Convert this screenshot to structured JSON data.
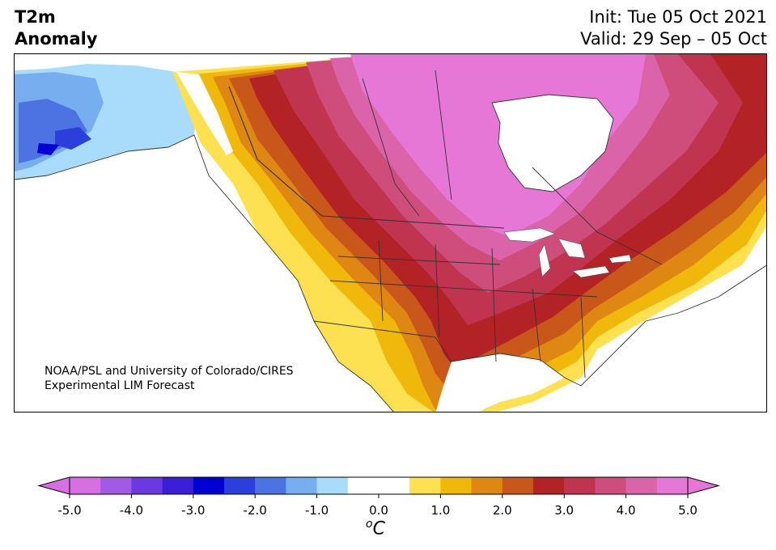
{
  "header": {
    "title_line1": "T2m",
    "title_line2": "Anomaly",
    "init": "Init: Tue 05 Oct 2021",
    "valid": "Valid: 29 Sep – 05 Oct"
  },
  "credit": {
    "line1": "NOAA/PSL and University of Colorado/CIRES",
    "line2": "Experimental LIM Forecast"
  },
  "colorbar": {
    "unit_base": "C",
    "unit_sup": "o",
    "ticks": [
      "-5.0",
      "-4.0",
      "-3.0",
      "-2.0",
      "-1.0",
      "0.0",
      "1.0",
      "2.0",
      "3.0",
      "4.0",
      "5.0"
    ],
    "bins": [
      {
        "color": "#d76fe3",
        "range": [
          -5.0,
          -4.5
        ]
      },
      {
        "color": "#a05ae6",
        "range": [
          -4.5,
          -4.0
        ]
      },
      {
        "color": "#6a3ae0",
        "range": [
          -4.0,
          -3.5
        ]
      },
      {
        "color": "#3a1fd6",
        "range": [
          -3.5,
          -3.0
        ]
      },
      {
        "color": "#0000d6",
        "range": [
          -3.0,
          -2.5
        ]
      },
      {
        "color": "#2a3fdc",
        "range": [
          -2.5,
          -2.0
        ]
      },
      {
        "color": "#4d73e3",
        "range": [
          -2.0,
          -1.5
        ]
      },
      {
        "color": "#77aef0",
        "range": [
          -1.5,
          -1.0
        ]
      },
      {
        "color": "#a9dcfa",
        "range": [
          -1.0,
          -0.5
        ]
      },
      {
        "color": "#ffffff",
        "range": [
          -0.5,
          0.0
        ]
      },
      {
        "color": "#ffffff",
        "range": [
          0.0,
          0.5
        ]
      },
      {
        "color": "#fde150",
        "range": [
          0.5,
          1.0
        ]
      },
      {
        "color": "#f1b80c",
        "range": [
          1.0,
          1.5
        ]
      },
      {
        "color": "#de8813",
        "range": [
          1.5,
          2.0
        ]
      },
      {
        "color": "#c95719",
        "range": [
          2.0,
          2.5
        ]
      },
      {
        "color": "#b32325",
        "range": [
          2.5,
          3.0
        ]
      },
      {
        "color": "#c0344f",
        "range": [
          3.0,
          3.5
        ]
      },
      {
        "color": "#cf4d7b",
        "range": [
          3.5,
          4.0
        ]
      },
      {
        "color": "#da63a9",
        "range": [
          4.0,
          4.5
        ]
      },
      {
        "color": "#e677d6",
        "range": [
          4.5,
          5.0
        ]
      }
    ],
    "under_color": "#d76fe3",
    "over_color": "#e677d6"
  }
}
